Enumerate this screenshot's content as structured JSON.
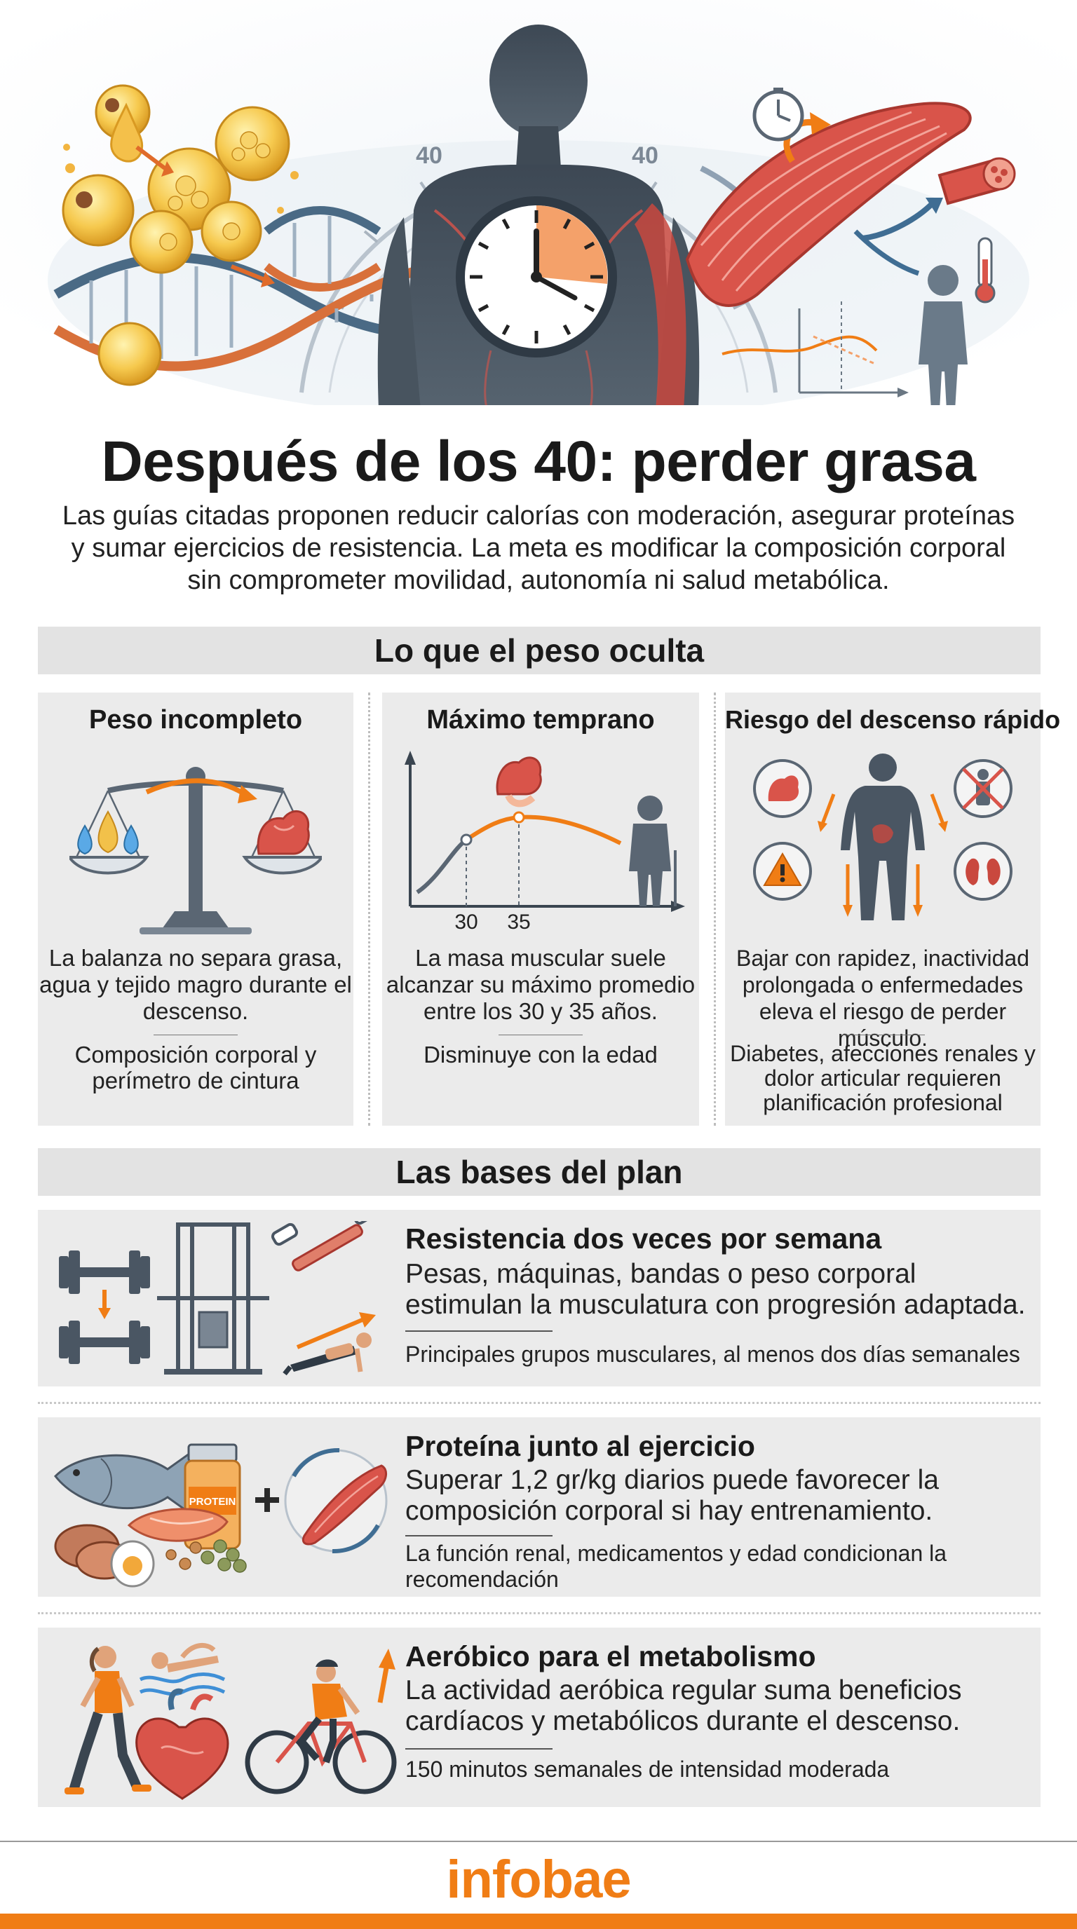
{
  "hero": {
    "dial_left": "40",
    "dial_right": "40"
  },
  "title": "Después de los 40: perder grasa",
  "lead": "Las guías citadas proponen reducir calorías con moderación, asegurar proteínas y sumar ejercicios de resistencia. La meta es modificar la composición corporal sin comprometer movilidad, autonomía ni salud metabólica.",
  "section1": {
    "title": "Lo que el peso oculta",
    "cards": [
      {
        "title": "Peso incompleto",
        "desc": "La balanza no separa grasa, agua y tejido magro durante el descenso.",
        "note": "Composición corporal y perímetro de cintura"
      },
      {
        "title": "Máximo temprano",
        "desc": "La masa muscular suele alcanzar su máximo promedio entre los 30 y 35 años.",
        "note": "Disminuye con la edad",
        "axis_labels": [
          "30",
          "35"
        ]
      },
      {
        "title": "Riesgo del descenso rápido",
        "desc": "Bajar con rapidez, inactividad prolongada o enfermedades eleva el riesgo de perder músculo.",
        "note": "Diabetes, afecciones renales y dolor articular requieren planificación profesional"
      }
    ]
  },
  "section2": {
    "title": "Las bases del plan",
    "rows": [
      {
        "title": "Resistencia dos veces por semana",
        "desc": "Pesas, máquinas, bandas o peso corporal estimulan la musculatura con progresión adaptada.",
        "note": "Principales grupos musculares, al menos dos días semanales"
      },
      {
        "title": "Proteína junto al ejercicio",
        "desc": "Superar 1,2 gr/kg diarios puede favorecer la composición corporal si hay entrenamiento.",
        "note": "La función renal, medicamentos y edad condicionan la recomendación",
        "jar_label": "PROTEIN"
      },
      {
        "title": "Aeróbico para el metabolismo",
        "desc": "La actividad aeróbica regular suma beneficios cardíacos y metabólicos durante el descenso.",
        "note": "150 minutos semanales de intensidad moderada"
      }
    ]
  },
  "footer": {
    "logo": "infobae"
  },
  "colors": {
    "accent": "#f07d15",
    "band": "#e3e3e3",
    "card": "#ebebeb",
    "figure": "#4a5663",
    "muscle": "#d9544a"
  }
}
